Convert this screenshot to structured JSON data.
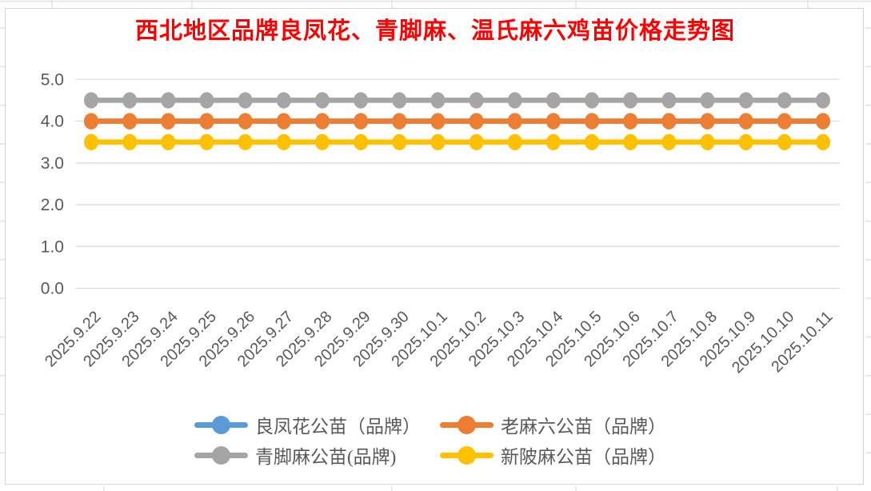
{
  "chart_data": {
    "type": "line",
    "title": "西北地区品牌良凤花、青脚麻、温氏麻六鸡苗价格走势图",
    "title_color": "#FF0000",
    "x": [
      "2025.9.22",
      "2025.9.23",
      "2025.9.24",
      "2025.9.25",
      "2025.9.26",
      "2025.9.27",
      "2025.9.28",
      "2025.9.29",
      "2025.9.30",
      "2025.10.1",
      "2025.10.2",
      "2025.10.3",
      "2025.10.4",
      "2025.10.5",
      "2025.10.6",
      "2025.10.7",
      "2025.10.8",
      "2025.10.9",
      "2025.10.10",
      "2025.10.11"
    ],
    "series": [
      {
        "name": "良凤花公苗（品牌）",
        "color": "#5B9BD5",
        "values": [
          4.0,
          4.0,
          4.0,
          4.0,
          4.0,
          4.0,
          4.0,
          4.0,
          4.0,
          4.0,
          4.0,
          4.0,
          4.0,
          4.0,
          4.0,
          4.0,
          4.0,
          4.0,
          4.0,
          4.0
        ],
        "visible_in_plot": false,
        "note": "line coincides with 老麻六公苗（品牌） at 4.0 and is hidden beneath it"
      },
      {
        "name": "老麻六公苗（品牌）",
        "color": "#ED7D31",
        "values": [
          4.0,
          4.0,
          4.0,
          4.0,
          4.0,
          4.0,
          4.0,
          4.0,
          4.0,
          4.0,
          4.0,
          4.0,
          4.0,
          4.0,
          4.0,
          4.0,
          4.0,
          4.0,
          4.0,
          4.0
        ],
        "visible_in_plot": true
      },
      {
        "name": "青脚麻公苗(品牌)",
        "color": "#A5A5A5",
        "values": [
          4.5,
          4.5,
          4.5,
          4.5,
          4.5,
          4.5,
          4.5,
          4.5,
          4.5,
          4.5,
          4.5,
          4.5,
          4.5,
          4.5,
          4.5,
          4.5,
          4.5,
          4.5,
          4.5,
          4.5
        ],
        "visible_in_plot": true
      },
      {
        "name": "新陂麻公苗（品牌）",
        "color": "#FFC000",
        "values": [
          3.5,
          3.5,
          3.5,
          3.5,
          3.5,
          3.5,
          3.5,
          3.5,
          3.5,
          3.5,
          3.5,
          3.5,
          3.5,
          3.5,
          3.5,
          3.5,
          3.5,
          3.5,
          3.5,
          3.5
        ],
        "visible_in_plot": true
      }
    ],
    "ylim": [
      0,
      5
    ],
    "ytick_labels": [
      "0.0",
      "1.0",
      "2.0",
      "3.0",
      "4.0",
      "5.0"
    ],
    "grid": true,
    "legend_position": "bottom",
    "axis_text_color": "#595959",
    "grid_color": "#D9D9D9"
  }
}
